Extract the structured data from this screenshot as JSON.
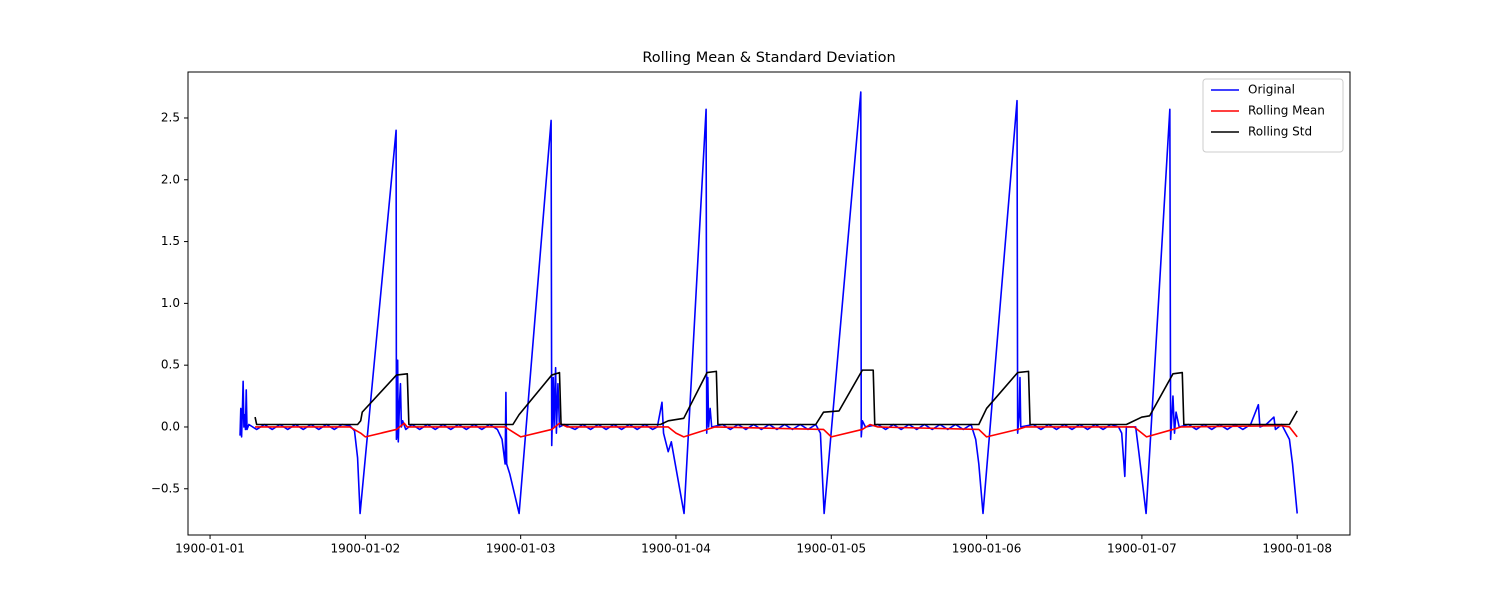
{
  "chart_data": {
    "type": "line",
    "title": "Rolling Mean & Standard Deviation",
    "xlim": [
      -0.142,
      7.34
    ],
    "ylim": [
      -0.874,
      2.872
    ],
    "xticks": [
      {
        "value": 0,
        "label": "1900-01-01"
      },
      {
        "value": 1,
        "label": "1900-01-02"
      },
      {
        "value": 2,
        "label": "1900-01-03"
      },
      {
        "value": 3,
        "label": "1900-01-04"
      },
      {
        "value": 4,
        "label": "1900-01-05"
      },
      {
        "value": 5,
        "label": "1900-01-06"
      },
      {
        "value": 6,
        "label": "1900-01-07"
      },
      {
        "value": 7,
        "label": "1900-01-08"
      }
    ],
    "yticks": [
      {
        "value": -0.5,
        "label": "−0.5"
      },
      {
        "value": 0,
        "label": "0.0"
      },
      {
        "value": 0.5,
        "label": "0.5"
      },
      {
        "value": 1,
        "label": "1.0"
      },
      {
        "value": 1.5,
        "label": "1.5"
      },
      {
        "value": 2,
        "label": "2.0"
      },
      {
        "value": 2.5,
        "label": "2.5"
      }
    ],
    "legend": "upper right",
    "series": [
      {
        "name": "Original",
        "color": "#0000ff",
        "x": [
          0.193,
          0.198,
          0.203,
          0.208,
          0.213,
          0.218,
          0.223,
          0.228,
          0.233,
          0.238,
          0.25,
          0.3,
          0.35,
          0.4,
          0.45,
          0.5,
          0.55,
          0.6,
          0.65,
          0.7,
          0.75,
          0.8,
          0.85,
          0.9,
          0.93,
          0.95,
          0.966,
          1.198,
          1.2,
          1.205,
          1.208,
          1.212,
          1.22,
          1.226,
          1.232,
          1.24,
          1.26,
          1.3,
          1.35,
          1.4,
          1.45,
          1.5,
          1.55,
          1.6,
          1.65,
          1.7,
          1.75,
          1.8,
          1.85,
          1.88,
          1.9,
          1.905,
          1.91,
          1.93,
          1.99,
          2.196,
          2.2,
          2.21,
          2.215,
          2.225,
          2.23,
          2.24,
          2.25,
          2.28,
          2.35,
          2.4,
          2.45,
          2.5,
          2.55,
          2.6,
          2.65,
          2.7,
          2.75,
          2.8,
          2.85,
          2.88,
          2.91,
          2.92,
          2.95,
          2.97,
          3.052,
          3.194,
          3.198,
          3.205,
          3.21,
          3.22,
          3.23,
          3.3,
          3.35,
          3.4,
          3.45,
          3.5,
          3.55,
          3.6,
          3.65,
          3.7,
          3.75,
          3.8,
          3.85,
          3.9,
          3.93,
          3.954,
          4.19,
          4.193,
          4.2,
          4.22,
          4.3,
          4.35,
          4.4,
          4.45,
          4.5,
          4.55,
          4.6,
          4.65,
          4.7,
          4.75,
          4.8,
          4.85,
          4.9,
          4.93,
          4.95,
          4.977,
          5.196,
          5.2,
          5.21,
          5.215,
          5.22,
          5.3,
          5.35,
          5.4,
          5.45,
          5.5,
          5.55,
          5.6,
          5.65,
          5.7,
          5.75,
          5.8,
          5.85,
          5.87,
          5.89,
          5.9,
          5.96,
          5.98,
          6.027,
          6.18,
          6.185,
          6.2,
          6.21,
          6.22,
          6.24,
          6.3,
          6.35,
          6.4,
          6.45,
          6.5,
          6.55,
          6.6,
          6.65,
          6.7,
          6.75,
          6.76,
          6.8,
          6.85,
          6.86,
          6.9,
          6.95,
          6.97,
          7.0
        ],
        "values": [
          -0.07,
          0.15,
          -0.08,
          0.12,
          0.37,
          0.0,
          0.1,
          -0.02,
          0.3,
          -0.02,
          0.02,
          -0.02,
          0.02,
          -0.02,
          0.02,
          -0.02,
          0.02,
          -0.02,
          0.02,
          -0.02,
          0.02,
          -0.02,
          0.02,
          0.01,
          -0.03,
          -0.25,
          -0.7,
          2.4,
          -0.1,
          -0.05,
          0.54,
          -0.12,
          0.2,
          0.35,
          0.0,
          0.05,
          -0.02,
          0.02,
          -0.02,
          0.02,
          -0.02,
          0.02,
          -0.02,
          0.02,
          -0.02,
          0.02,
          -0.02,
          0.02,
          -0.02,
          -0.1,
          -0.3,
          0.28,
          -0.3,
          -0.38,
          -0.7,
          2.48,
          -0.15,
          0.4,
          0.0,
          0.48,
          -0.05,
          0.35,
          0.0,
          0.02,
          -0.02,
          0.02,
          -0.02,
          0.02,
          -0.02,
          0.02,
          -0.02,
          0.02,
          -0.02,
          0.02,
          -0.02,
          0.0,
          0.2,
          -0.05,
          -0.2,
          -0.12,
          -0.7,
          2.57,
          -0.05,
          0.4,
          0.0,
          0.15,
          0.0,
          0.02,
          -0.02,
          0.02,
          -0.02,
          0.02,
          -0.02,
          0.02,
          -0.02,
          0.02,
          -0.02,
          0.02,
          -0.02,
          0.02,
          -0.05,
          -0.7,
          2.71,
          -0.08,
          0.05,
          0.0,
          0.02,
          -0.02,
          0.02,
          -0.02,
          0.02,
          -0.02,
          0.02,
          -0.02,
          0.02,
          -0.02,
          0.02,
          -0.02,
          0.02,
          -0.1,
          -0.3,
          -0.7,
          2.64,
          -0.05,
          0.1,
          0.4,
          0.0,
          0.02,
          -0.02,
          0.02,
          -0.02,
          0.02,
          -0.02,
          0.02,
          -0.02,
          0.02,
          -0.02,
          0.02,
          0.0,
          -0.05,
          -0.4,
          0.0,
          0.0,
          -0.2,
          -0.7,
          2.57,
          -0.1,
          0.25,
          -0.05,
          0.12,
          0.0,
          0.02,
          -0.02,
          0.02,
          -0.02,
          0.02,
          -0.02,
          0.02,
          -0.02,
          0.02,
          0.18,
          0.0,
          0.02,
          0.08,
          -0.02,
          0.02,
          -0.1,
          -0.3,
          -0.7
        ]
      },
      {
        "name": "Rolling Mean",
        "color": "#ff0000",
        "x": [
          0.29,
          0.9,
          0.97,
          1.0,
          1.2,
          1.25,
          1.27,
          1.9,
          1.95,
          2.0,
          2.2,
          2.25,
          2.3,
          2.95,
          3.0,
          3.05,
          3.2,
          3.25,
          3.95,
          4.0,
          4.2,
          4.25,
          4.3,
          4.95,
          5.0,
          5.2,
          5.25,
          5.95,
          6.0,
          6.03,
          6.2,
          6.25,
          6.9,
          6.95,
          7.0
        ],
        "values": [
          0.0,
          0.0,
          -0.05,
          -0.08,
          -0.02,
          0.03,
          0.0,
          0.0,
          -0.04,
          -0.08,
          -0.02,
          0.03,
          0.0,
          0.0,
          -0.05,
          -0.08,
          -0.02,
          0.0,
          -0.02,
          -0.08,
          -0.02,
          0.02,
          0.0,
          -0.02,
          -0.08,
          -0.02,
          0.0,
          0.0,
          -0.05,
          -0.08,
          -0.02,
          0.0,
          0.01,
          0.0,
          -0.08
        ]
      },
      {
        "name": "Rolling Std",
        "color": "#000000",
        "x": [
          0.29,
          0.3,
          0.95,
          0.97,
          0.98,
          1.2,
          1.27,
          1.28,
          1.95,
          1.99,
          2.2,
          2.25,
          2.26,
          2.9,
          2.95,
          3.05,
          3.2,
          3.26,
          3.27,
          3.9,
          3.95,
          4.05,
          4.2,
          4.27,
          4.28,
          4.95,
          5.0,
          5.2,
          5.27,
          5.28,
          5.9,
          6.0,
          6.05,
          6.2,
          6.26,
          6.27,
          6.95,
          7.0
        ],
        "values": [
          0.08,
          0.02,
          0.02,
          0.05,
          0.12,
          0.42,
          0.43,
          0.02,
          0.02,
          0.1,
          0.42,
          0.44,
          0.02,
          0.02,
          0.05,
          0.07,
          0.44,
          0.45,
          0.02,
          0.02,
          0.12,
          0.13,
          0.46,
          0.46,
          0.02,
          0.02,
          0.15,
          0.44,
          0.45,
          0.02,
          0.02,
          0.08,
          0.09,
          0.43,
          0.44,
          0.02,
          0.02,
          0.13
        ]
      }
    ]
  }
}
